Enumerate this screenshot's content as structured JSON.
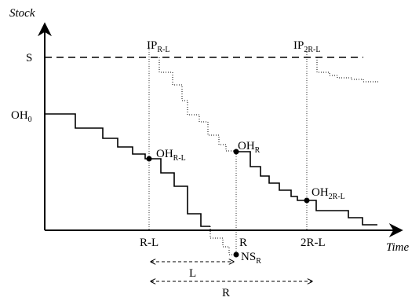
{
  "axes": {
    "y_label": "Stock",
    "x_label": "Time"
  },
  "labels": {
    "S": "S",
    "OH0": {
      "base": "OH",
      "sub": "0"
    },
    "OH_RL": {
      "base": "OH",
      "sub": "R-L"
    },
    "OH_R": {
      "base": "OH",
      "sub": "R"
    },
    "OH_2RL": {
      "base": "OH",
      "sub": "2R-L"
    },
    "IP_RL": {
      "base": "IP",
      "sub": "R-L"
    },
    "IP_2RL": {
      "base": "IP",
      "sub": "2R-L"
    },
    "NS_R": {
      "base": "NS",
      "sub": "R"
    },
    "tick_RL": "R-L",
    "tick_R": "R",
    "tick_2RL": "2R-L",
    "span_L": "L",
    "span_R": "R"
  }
}
